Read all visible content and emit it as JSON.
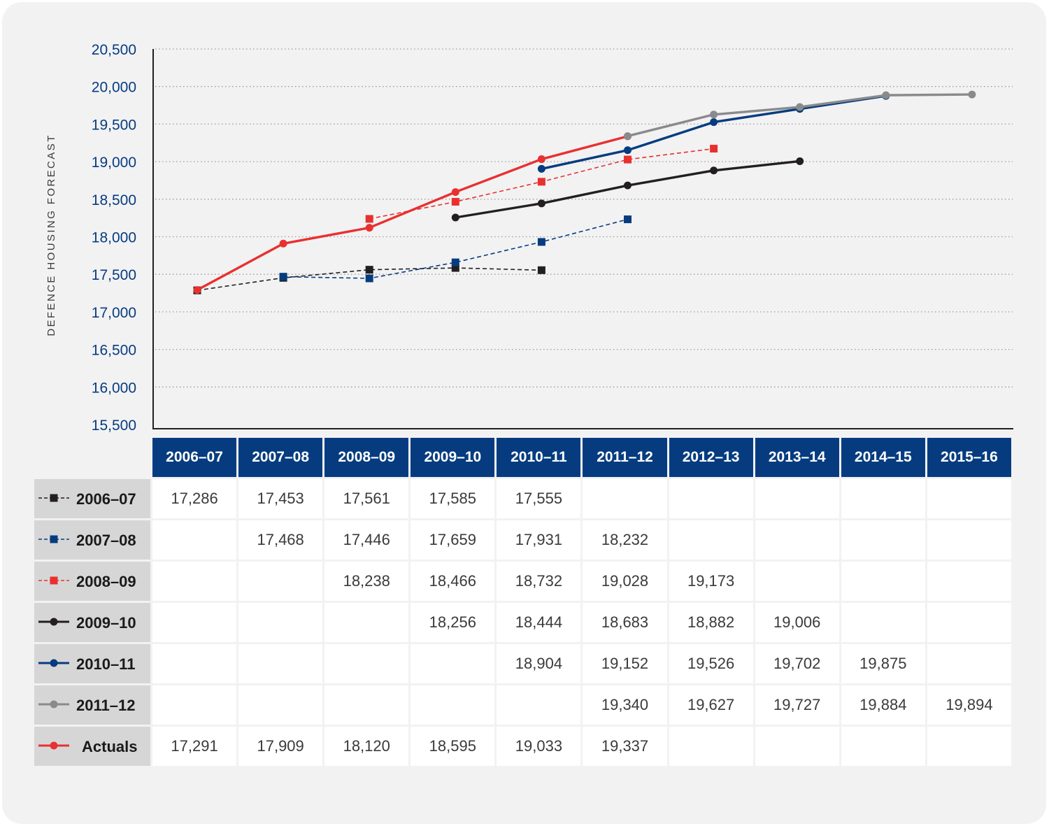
{
  "chart_data": {
    "type": "line",
    "ylabel": "DEFENCE HOUSING FORECAST",
    "ylim": [
      15500,
      20500
    ],
    "yticks": [
      "15,500",
      "16,000",
      "16,500",
      "17,000",
      "17,500",
      "18,000",
      "18,500",
      "19,000",
      "19,500",
      "20,000",
      "20,500"
    ],
    "ytick_values": [
      15500,
      16000,
      16500,
      17000,
      17500,
      18000,
      18500,
      19000,
      19500,
      20000,
      20500
    ],
    "grid": "horizontal dotted",
    "categories": [
      "2006–07",
      "2007–08",
      "2008–09",
      "2009–10",
      "2010–11",
      "2011–12",
      "2012–13",
      "2013–14",
      "2014–15",
      "2015–16"
    ],
    "series": [
      {
        "name": "2006–07",
        "style": "dashed",
        "marker": "square",
        "color": "#231f20",
        "values": [
          17286,
          17453,
          17561,
          17585,
          17555,
          null,
          null,
          null,
          null,
          null
        ],
        "labels": [
          "17,286",
          "17,453",
          "17,561",
          "17,585",
          "17,555",
          "",
          "",
          "",
          "",
          ""
        ]
      },
      {
        "name": "2007–08",
        "style": "dashed",
        "marker": "square",
        "color": "#063c7f",
        "values": [
          null,
          17468,
          17446,
          17659,
          17931,
          18232,
          null,
          null,
          null,
          null
        ],
        "labels": [
          "",
          "17,468",
          "17,446",
          "17,659",
          "17,931",
          "18,232",
          "",
          "",
          "",
          ""
        ]
      },
      {
        "name": "2008–09",
        "style": "dashed",
        "marker": "square",
        "color": "#e8312f",
        "values": [
          null,
          null,
          18238,
          18466,
          18732,
          19028,
          19173,
          null,
          null,
          null
        ],
        "labels": [
          "",
          "",
          "18,238",
          "18,466",
          "18,732",
          "19,028",
          "19,173",
          "",
          "",
          ""
        ]
      },
      {
        "name": "2009–10",
        "style": "solid",
        "marker": "circle",
        "color": "#231f20",
        "values": [
          null,
          null,
          null,
          18256,
          18444,
          18683,
          18882,
          19006,
          null,
          null
        ],
        "labels": [
          "",
          "",
          "",
          "18,256",
          "18,444",
          "18,683",
          "18,882",
          "19,006",
          "",
          ""
        ]
      },
      {
        "name": "2010–11",
        "style": "solid",
        "marker": "circle",
        "color": "#063c7f",
        "values": [
          null,
          null,
          null,
          null,
          18904,
          19152,
          19526,
          19702,
          19875,
          null
        ],
        "labels": [
          "",
          "",
          "",
          "",
          "18,904",
          "19,152",
          "19,526",
          "19,702",
          "19,875",
          ""
        ]
      },
      {
        "name": "2011–12",
        "style": "solid",
        "marker": "circle",
        "color": "#8a8a8c",
        "values": [
          null,
          null,
          null,
          null,
          null,
          19340,
          19627,
          19727,
          19884,
          19894
        ],
        "labels": [
          "",
          "",
          "",
          "",
          "",
          "19,340",
          "19,627",
          "19,727",
          "19,884",
          "19,894"
        ]
      },
      {
        "name": "Actuals",
        "style": "solid",
        "marker": "circle",
        "color": "#e8312f",
        "values": [
          17291,
          17909,
          18120,
          18595,
          19033,
          19337,
          null,
          null,
          null,
          null
        ],
        "labels": [
          "17,291",
          "17,909",
          "18,120",
          "18,595",
          "19,033",
          "19,337",
          "",
          "",
          "",
          ""
        ]
      }
    ]
  }
}
